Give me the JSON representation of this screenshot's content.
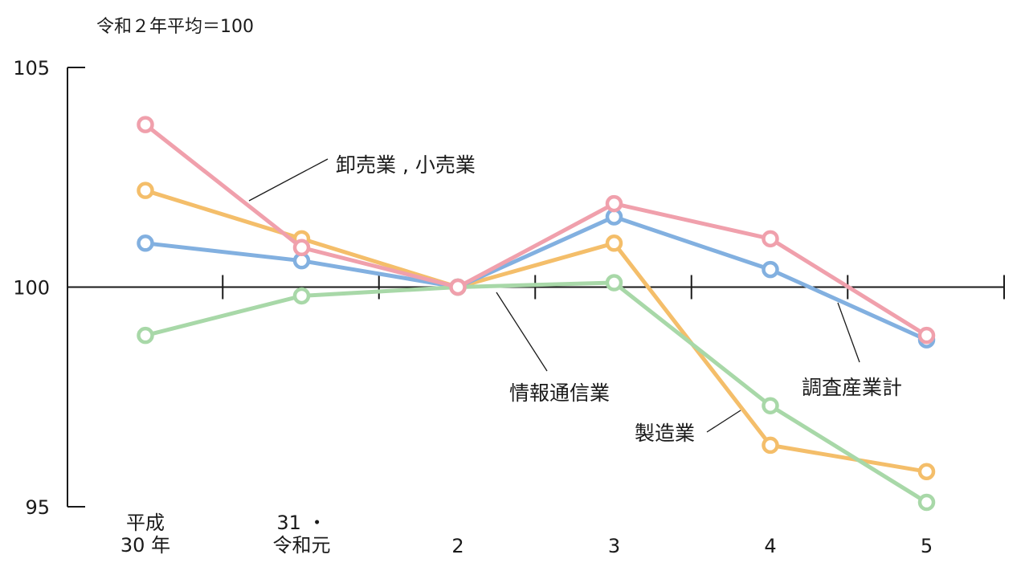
{
  "chart_data": {
    "type": "line",
    "unit_label": "令和２年平均＝100",
    "ylim": [
      95,
      105
    ],
    "yticks": [
      "95",
      "100",
      "105"
    ],
    "categories": [
      [
        "平成",
        "30 年"
      ],
      [
        "31 ・",
        "令和元"
      ],
      [
        "2"
      ],
      [
        "3"
      ],
      [
        "4"
      ],
      [
        "5"
      ]
    ],
    "grid": false,
    "legend": "inline labels with leader lines",
    "series": [
      {
        "name": "製造業",
        "color": "#f4be6a",
        "values": [
          102.2,
          101.1,
          100.0,
          101.0,
          96.4,
          95.8
        ]
      },
      {
        "name": "調査産業計",
        "color": "#82b0e0",
        "values": [
          101.0,
          100.6,
          100.0,
          101.6,
          100.4,
          98.8
        ]
      },
      {
        "name": "情報通信業",
        "color": "#a8d8a8",
        "values": [
          98.9,
          99.8,
          100.0,
          100.1,
          97.3,
          95.1
        ]
      },
      {
        "name": "卸売業 , 小売業",
        "color": "#f0a0ac",
        "values": [
          103.7,
          100.9,
          100.0,
          101.9,
          101.1,
          98.9
        ]
      }
    ]
  }
}
